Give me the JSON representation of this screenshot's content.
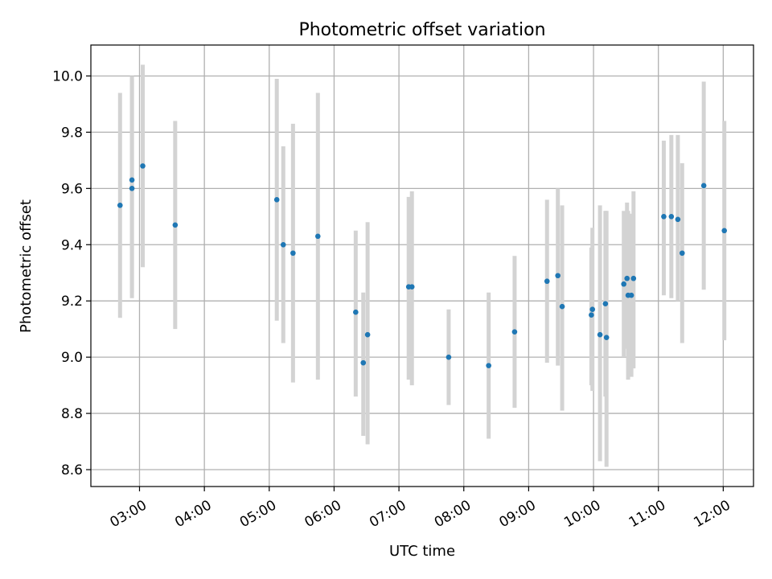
{
  "chart_data": {
    "type": "scatter",
    "title": "Photometric offset variation",
    "xlabel": "UTC time",
    "ylabel": "Photometric offset",
    "xlim": [
      "02:15",
      "12:28"
    ],
    "ylim": [
      8.54,
      10.11
    ],
    "grid": true,
    "x_ticks": [
      "03:00",
      "04:00",
      "05:00",
      "06:00",
      "07:00",
      "08:00",
      "09:00",
      "10:00",
      "11:00",
      "12:00"
    ],
    "y_ticks": [
      "8.6",
      "8.8",
      "9.0",
      "9.2",
      "9.4",
      "9.6",
      "9.8",
      "10.0"
    ],
    "y_tick_values": [
      8.6,
      8.8,
      9.0,
      9.2,
      9.4,
      9.6,
      9.8,
      10.0
    ],
    "marker_color": "#1f77b4",
    "errorbar_color": "#d3d3d3",
    "points": [
      {
        "t": "02:42",
        "y": 9.54,
        "err_low": 9.14,
        "err_high": 9.94
      },
      {
        "t": "02:53",
        "y": 9.6,
        "err_low": 9.21,
        "err_high": 9.99
      },
      {
        "t": "02:53",
        "y": 9.63,
        "err_low": 9.23,
        "err_high": 10.0
      },
      {
        "t": "03:03",
        "y": 9.68,
        "err_low": 9.32,
        "err_high": 10.04
      },
      {
        "t": "03:33",
        "y": 9.47,
        "err_low": 9.1,
        "err_high": 9.84
      },
      {
        "t": "05:07",
        "y": 9.56,
        "err_low": 9.13,
        "err_high": 9.99
      },
      {
        "t": "05:13",
        "y": 9.4,
        "err_low": 9.05,
        "err_high": 9.75
      },
      {
        "t": "05:22",
        "y": 9.37,
        "err_low": 8.91,
        "err_high": 9.83
      },
      {
        "t": "05:45",
        "y": 9.43,
        "err_low": 8.92,
        "err_high": 9.94
      },
      {
        "t": "06:20",
        "y": 9.16,
        "err_low": 8.86,
        "err_high": 9.45
      },
      {
        "t": "06:27",
        "y": 8.98,
        "err_low": 8.72,
        "err_high": 9.23
      },
      {
        "t": "06:31",
        "y": 9.08,
        "err_low": 8.69,
        "err_high": 9.48
      },
      {
        "t": "07:09",
        "y": 9.25,
        "err_low": 8.92,
        "err_high": 9.57
      },
      {
        "t": "07:12",
        "y": 9.25,
        "err_low": 8.9,
        "err_high": 9.59
      },
      {
        "t": "07:46",
        "y": 9.0,
        "err_low": 8.83,
        "err_high": 9.17
      },
      {
        "t": "08:23",
        "y": 8.97,
        "err_low": 8.71,
        "err_high": 9.23
      },
      {
        "t": "08:47",
        "y": 9.09,
        "err_low": 8.82,
        "err_high": 9.36
      },
      {
        "t": "09:17",
        "y": 9.27,
        "err_low": 8.98,
        "err_high": 9.56
      },
      {
        "t": "09:27",
        "y": 9.29,
        "err_low": 8.97,
        "err_high": 9.6
      },
      {
        "t": "09:31",
        "y": 9.18,
        "err_low": 8.81,
        "err_high": 9.54
      },
      {
        "t": "09:58",
        "y": 9.15,
        "err_low": 8.9,
        "err_high": 9.39
      },
      {
        "t": "09:59",
        "y": 9.17,
        "err_low": 8.88,
        "err_high": 9.46
      },
      {
        "t": "10:06",
        "y": 9.08,
        "err_low": 8.63,
        "err_high": 9.54
      },
      {
        "t": "10:11",
        "y": 9.19,
        "err_low": 8.86,
        "err_high": 9.52
      },
      {
        "t": "10:12",
        "y": 9.07,
        "err_low": 8.61,
        "err_high": 9.52
      },
      {
        "t": "10:28",
        "y": 9.26,
        "err_low": 9.0,
        "err_high": 9.52
      },
      {
        "t": "10:31",
        "y": 9.28,
        "err_low": 9.03,
        "err_high": 9.55
      },
      {
        "t": "10:32",
        "y": 9.22,
        "err_low": 8.92,
        "err_high": 9.52
      },
      {
        "t": "10:35",
        "y": 9.22,
        "err_low": 8.93,
        "err_high": 9.51
      },
      {
        "t": "10:37",
        "y": 9.28,
        "err_low": 8.96,
        "err_high": 9.59
      },
      {
        "t": "11:05",
        "y": 9.5,
        "err_low": 9.22,
        "err_high": 9.77
      },
      {
        "t": "11:12",
        "y": 9.5,
        "err_low": 9.21,
        "err_high": 9.79
      },
      {
        "t": "11:18",
        "y": 9.49,
        "err_low": 9.2,
        "err_high": 9.79
      },
      {
        "t": "11:22",
        "y": 9.37,
        "err_low": 9.05,
        "err_high": 9.69
      },
      {
        "t": "11:42",
        "y": 9.61,
        "err_low": 9.24,
        "err_high": 9.98
      },
      {
        "t": "12:01",
        "y": 9.45,
        "err_low": 9.06,
        "err_high": 9.84
      }
    ]
  }
}
